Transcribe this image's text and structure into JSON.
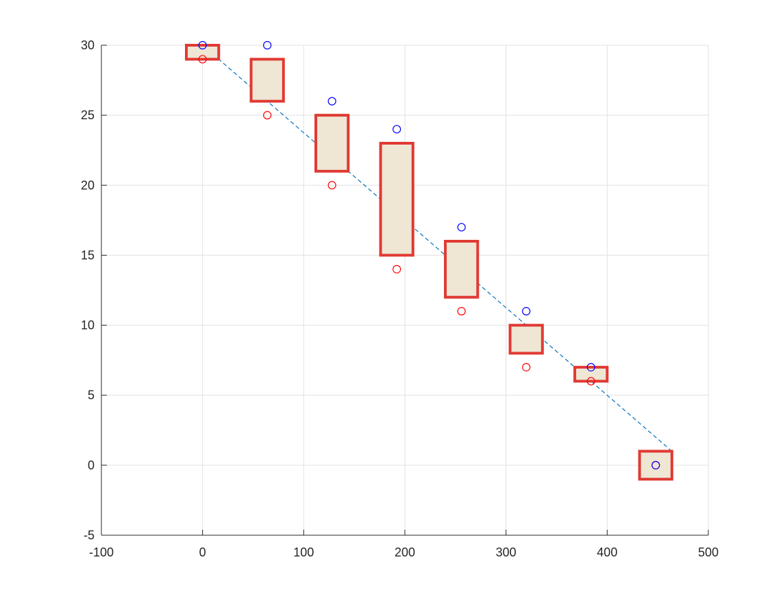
{
  "chart_data": {
    "type": "scatter",
    "title": "",
    "xlabel": "",
    "ylabel": "",
    "xlim": [
      -100,
      500
    ],
    "ylim": [
      -5,
      30
    ],
    "grid": true,
    "xticks": [
      -100,
      0,
      100,
      200,
      300,
      400,
      500
    ],
    "xtick_labels": [
      "-100",
      "0",
      "100",
      "200",
      "300",
      "400",
      "500"
    ],
    "yticks": [
      -5,
      0,
      5,
      10,
      15,
      20,
      25,
      30
    ],
    "ytick_labels": [
      "-5",
      "0",
      "5",
      "10",
      "15",
      "20",
      "25",
      "30"
    ],
    "bars": [
      {
        "x": 0,
        "low": 29,
        "high": 30
      },
      {
        "x": 64,
        "low": 26,
        "high": 29
      },
      {
        "x": 128,
        "low": 21,
        "high": 25
      },
      {
        "x": 192,
        "low": 15,
        "high": 23
      },
      {
        "x": 256,
        "low": 12,
        "high": 16
      },
      {
        "x": 320,
        "low": 8,
        "high": 10
      },
      {
        "x": 384,
        "low": 6,
        "high": 7
      },
      {
        "x": 448,
        "low": -1,
        "high": 1
      }
    ],
    "bar_half_width": 16,
    "blue_points": {
      "x": [
        0,
        64,
        128,
        192,
        256,
        320,
        384,
        448
      ],
      "y": [
        30,
        30,
        26,
        24,
        17,
        11,
        7,
        0
      ]
    },
    "red_points": {
      "x": [
        0,
        64,
        128,
        192,
        256,
        320,
        384,
        448
      ],
      "y": [
        29,
        25,
        20,
        14,
        11,
        7,
        6,
        0
      ]
    },
    "trend_line": {
      "x": [
        0,
        464
      ],
      "y": [
        30,
        1
      ]
    },
    "colors": {
      "bar_edge": "#e03a33",
      "bar_fill": "#efe6d4",
      "blue_marker": "#0000ff",
      "red_marker": "#ff0000",
      "trend": "#0072bd",
      "grid": "#e1e1e1",
      "axis": "#262626"
    }
  }
}
